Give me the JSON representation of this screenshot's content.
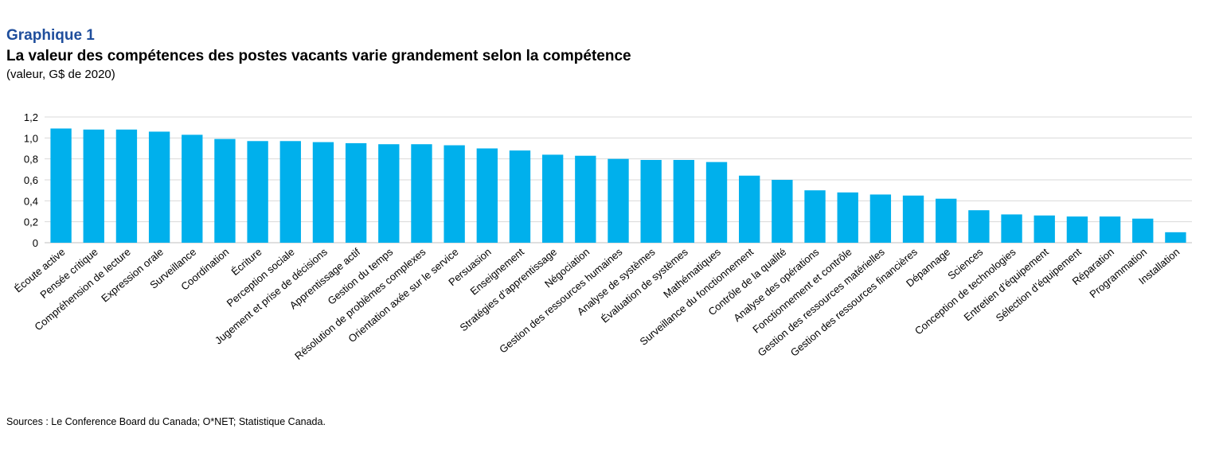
{
  "header": {
    "label": "Graphique 1",
    "title": "La valeur des compétences des postes vacants varie grandement selon la compétence",
    "subtitle": "(valeur, G$ de 2020)"
  },
  "source": "Sources : Le Conference Board du Canada; O*NET; Statistique Canada.",
  "colors": {
    "bar": "#00b0ec",
    "grid": "#d9d9d9",
    "label_accent": "#1f4e9c"
  },
  "chart_data": {
    "type": "bar",
    "title": "La valeur des compétences des postes vacants varie grandement selon la compétence",
    "xlabel": "",
    "ylabel": "(valeur, G$ de 2020)",
    "ylim": [
      0,
      1.2
    ],
    "yticks": [
      0,
      0.2,
      0.4,
      0.6,
      0.8,
      1.0,
      1.2
    ],
    "ytick_labels": [
      "0",
      "0,2",
      "0,4",
      "0,6",
      "0,8",
      "1,0",
      "1,2"
    ],
    "grid": true,
    "legend": "none",
    "categories": [
      "Écoute active",
      "Pensée critique",
      "Compréhension de lecture",
      "Expression orale",
      "Surveillance",
      "Coordination",
      "Écriture",
      "Perception sociale",
      "Jugement et prise de décisions",
      "Apprentissage actif",
      "Gestion du temps",
      "Résolution de problèmes complexes",
      "Orientation axée sur le service",
      "Persuasion",
      "Enseignement",
      "Stratégies d’apprentissage",
      "Négociation",
      "Gestion des ressources humaines",
      "Analyse de systèmes",
      "Évaluation de systèmes",
      "Mathématiques",
      "Surveillance du fonctionnement",
      "Contrôle de la qualité",
      "Analyse des opérations",
      "Fonctionnement et contrôle",
      "Gestion des ressources matérielles",
      "Gestion des ressources financières",
      "Dépannage",
      "Sciences",
      "Conception de technologies",
      "Entretien d’équipement",
      "Sélection d’équipement",
      "Réparation",
      "Programmation",
      "Installation"
    ],
    "values": [
      1.09,
      1.08,
      1.08,
      1.06,
      1.03,
      0.99,
      0.97,
      0.97,
      0.96,
      0.95,
      0.94,
      0.94,
      0.93,
      0.9,
      0.88,
      0.84,
      0.83,
      0.8,
      0.79,
      0.79,
      0.77,
      0.64,
      0.6,
      0.5,
      0.48,
      0.46,
      0.45,
      0.42,
      0.31,
      0.27,
      0.26,
      0.25,
      0.25,
      0.23,
      0.1
    ]
  }
}
